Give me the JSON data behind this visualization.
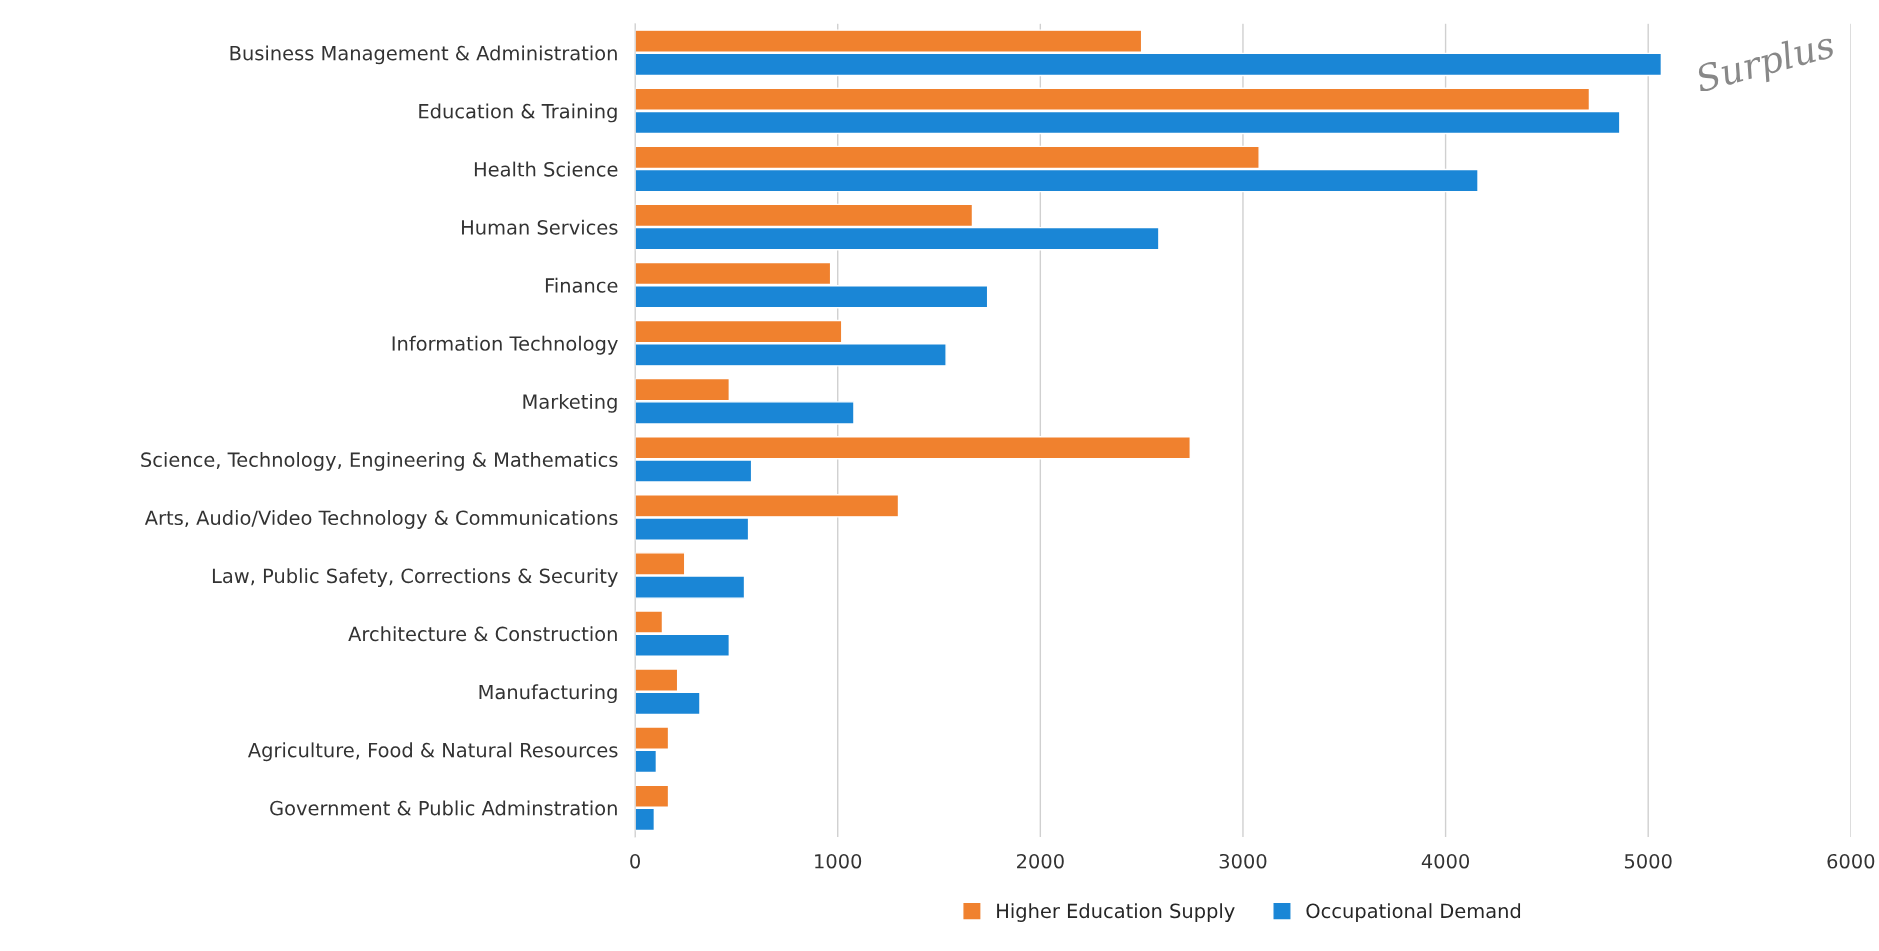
{
  "chart_data": {
    "type": "bar",
    "orientation": "horizontal",
    "categories": [
      "Business Management & Administration",
      "Education & Training",
      "Health Science",
      "Human Services",
      "Finance",
      "Information Technology",
      "Marketing",
      "Science, Technology, Engineering & Mathematics",
      "Arts, Audio/Video Technology & Communications",
      "Law, Public Safety, Corrections & Security",
      "Architecture & Construction",
      "Manufacturing",
      "Agriculture, Food & Natural Resources",
      "Government & Public Adminstration"
    ],
    "series": [
      {
        "name": "Higher Education Supply",
        "color": "#f0812e",
        "values": [
          2500,
          4710,
          3080,
          1665,
          965,
          1020,
          465,
          2740,
          1300,
          245,
          135,
          210,
          165,
          165
        ]
      },
      {
        "name": "Occupational Demand",
        "color": "#1a86d6",
        "values": [
          5065,
          4860,
          4160,
          2585,
          1740,
          1535,
          1080,
          575,
          560,
          540,
          465,
          320,
          105,
          95
        ]
      }
    ],
    "xlim": [
      0,
      6000
    ],
    "xticks": [
      0,
      1000,
      2000,
      3000,
      4000,
      5000,
      6000
    ],
    "grid": "x",
    "legend": "bottom",
    "annotations": [
      "Surplus"
    ]
  }
}
